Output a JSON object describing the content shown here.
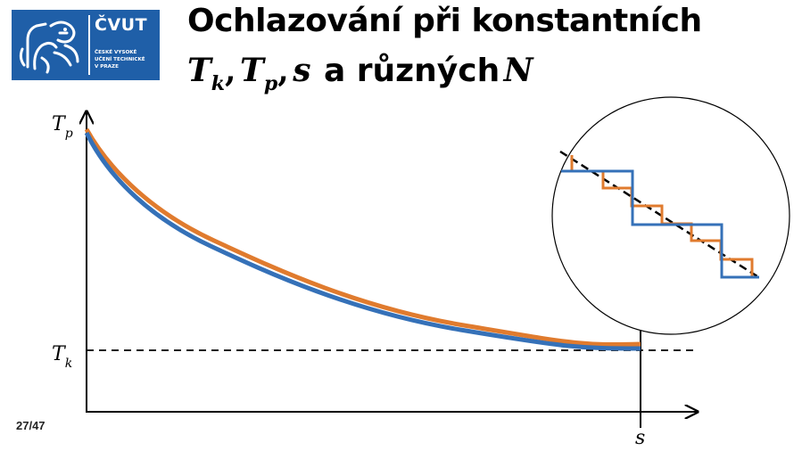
{
  "logo": {
    "name": "ČVUT",
    "subtitle_lines": [
      "ČESKÉ VYSOKÉ",
      "UČENÍ TECHNICKÉ",
      "V PRAZE"
    ],
    "color": "#1f5fa8"
  },
  "title": {
    "line1": "Ochlazování při konstantních",
    "line2_math": {
      "t1": "T",
      "t1_sub": "k",
      "comma1": ",",
      "t2": "T",
      "t2_sub": "p",
      "comma2": ",",
      "s": "s",
      "text": "a různých",
      "n": "N"
    }
  },
  "diagram": {
    "y_label_top": {
      "main": "T",
      "sub": "p"
    },
    "y_label_bottom": {
      "main": "T",
      "sub": "k"
    },
    "x_label": "s",
    "series_colors": {
      "orange": "#e07b2e",
      "blue": "#3571b8"
    },
    "axis_color": "#000000",
    "inset": {
      "description_icon": "magnifier-circle-icon"
    }
  },
  "page_number": "27/47"
}
